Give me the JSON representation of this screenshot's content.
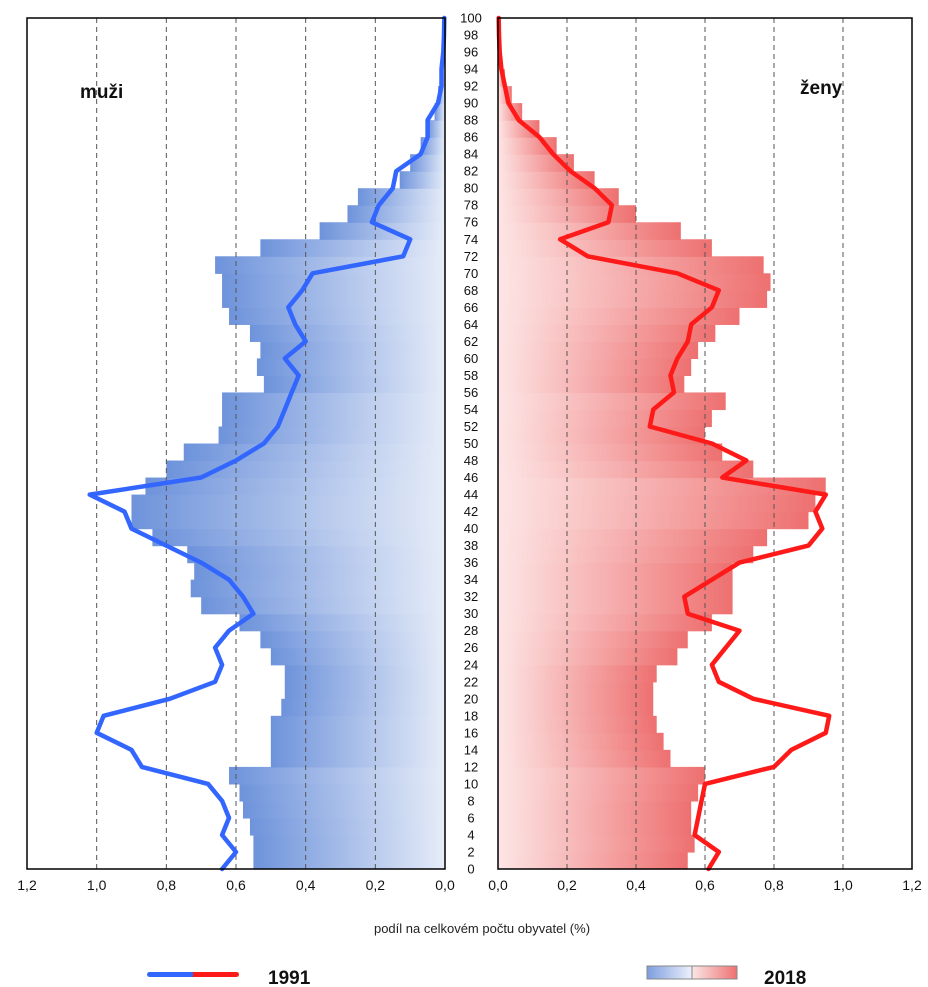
{
  "chart_data": {
    "type": "population-pyramid",
    "xlabel": "podíl na celkovém počtu obyvatel (%)",
    "left_title": "muži",
    "right_title": "ženy",
    "xlim": [
      0,
      1.2
    ],
    "x_ticks": [
      "1,2",
      "1,0",
      "0,8",
      "0,6",
      "0,4",
      "0,2",
      "0,0"
    ],
    "x_ticks_right": [
      "0,0",
      "0,2",
      "0,4",
      "0,6",
      "0,8",
      "1,0",
      "1,2"
    ],
    "age_range": [
      0,
      100
    ],
    "age_tick_step": 2,
    "legend": {
      "line_label": "1991",
      "bar_label": "2018"
    },
    "colors": {
      "male_line": "#3366ff",
      "female_line": "#ff1a1a",
      "male_bar": "#7c9ee0",
      "female_bar": "#f08080",
      "grid": "#555555"
    },
    "series": [
      {
        "name": "1991",
        "sex": "male",
        "kind": "line",
        "ages": [
          0,
          2,
          4,
          6,
          8,
          10,
          12,
          14,
          16,
          18,
          20,
          22,
          24,
          26,
          28,
          30,
          32,
          34,
          36,
          38,
          40,
          42,
          44,
          46,
          48,
          50,
          52,
          54,
          56,
          58,
          60,
          62,
          64,
          66,
          68,
          70,
          72,
          74,
          76,
          78,
          80,
          82,
          84,
          86,
          88,
          90,
          92,
          94,
          96,
          98,
          100
        ],
        "values": [
          0.64,
          0.6,
          0.64,
          0.62,
          0.64,
          0.68,
          0.87,
          0.9,
          1.0,
          0.98,
          0.79,
          0.66,
          0.64,
          0.66,
          0.62,
          0.55,
          0.58,
          0.62,
          0.7,
          0.8,
          0.9,
          0.92,
          1.02,
          0.7,
          0.6,
          0.52,
          0.48,
          0.46,
          0.44,
          0.42,
          0.46,
          0.4,
          0.43,
          0.45,
          0.41,
          0.38,
          0.12,
          0.1,
          0.21,
          0.19,
          0.15,
          0.14,
          0.07,
          0.05,
          0.05,
          0.02,
          0.01,
          0.01,
          0.005,
          0.003,
          0.002
        ]
      },
      {
        "name": "1991",
        "sex": "female",
        "kind": "line",
        "ages": [
          0,
          2,
          4,
          6,
          8,
          10,
          12,
          14,
          16,
          18,
          20,
          22,
          24,
          26,
          28,
          30,
          32,
          34,
          36,
          38,
          40,
          42,
          44,
          46,
          48,
          50,
          52,
          54,
          56,
          58,
          60,
          62,
          64,
          66,
          68,
          70,
          72,
          74,
          76,
          78,
          80,
          82,
          84,
          86,
          88,
          90,
          92,
          94,
          96,
          98,
          100
        ],
        "values": [
          0.61,
          0.64,
          0.57,
          0.58,
          0.59,
          0.6,
          0.8,
          0.85,
          0.95,
          0.96,
          0.74,
          0.64,
          0.62,
          0.66,
          0.7,
          0.55,
          0.54,
          0.62,
          0.7,
          0.9,
          0.94,
          0.92,
          0.95,
          0.65,
          0.72,
          0.62,
          0.44,
          0.45,
          0.51,
          0.5,
          0.52,
          0.55,
          0.56,
          0.62,
          0.64,
          0.52,
          0.26,
          0.18,
          0.32,
          0.33,
          0.28,
          0.21,
          0.16,
          0.12,
          0.06,
          0.03,
          0.02,
          0.01,
          0.005,
          0.003,
          0.002
        ]
      },
      {
        "name": "2018",
        "sex": "male",
        "kind": "bar",
        "ages": [
          0,
          2,
          4,
          6,
          8,
          10,
          12,
          14,
          16,
          18,
          20,
          22,
          24,
          26,
          28,
          30,
          32,
          34,
          36,
          38,
          40,
          42,
          44,
          46,
          48,
          50,
          52,
          54,
          56,
          58,
          60,
          62,
          64,
          66,
          68,
          70,
          72,
          74,
          76,
          78,
          80,
          82,
          84,
          86,
          88,
          90,
          92,
          94,
          96,
          98,
          100
        ],
        "values": [
          0.55,
          0.55,
          0.56,
          0.58,
          0.59,
          0.62,
          0.5,
          0.5,
          0.5,
          0.47,
          0.46,
          0.46,
          0.5,
          0.53,
          0.59,
          0.7,
          0.73,
          0.72,
          0.74,
          0.84,
          0.9,
          0.9,
          0.86,
          0.8,
          0.75,
          0.65,
          0.64,
          0.64,
          0.52,
          0.54,
          0.53,
          0.56,
          0.62,
          0.64,
          0.64,
          0.66,
          0.53,
          0.36,
          0.28,
          0.25,
          0.13,
          0.1,
          0.07,
          0.05,
          0.03,
          0.02,
          0.015,
          0.01,
          0.005,
          0.003,
          0.002
        ]
      },
      {
        "name": "2018",
        "sex": "female",
        "kind": "bar",
        "ages": [
          0,
          2,
          4,
          6,
          8,
          10,
          12,
          14,
          16,
          18,
          20,
          22,
          24,
          26,
          28,
          30,
          32,
          34,
          36,
          38,
          40,
          42,
          44,
          46,
          48,
          50,
          52,
          54,
          56,
          58,
          60,
          62,
          64,
          66,
          68,
          70,
          72,
          74,
          76,
          78,
          80,
          82,
          84,
          86,
          88,
          90,
          92,
          94,
          96,
          98,
          100
        ],
        "values": [
          0.55,
          0.57,
          0.56,
          0.56,
          0.58,
          0.6,
          0.5,
          0.48,
          0.46,
          0.45,
          0.45,
          0.46,
          0.52,
          0.55,
          0.62,
          0.68,
          0.68,
          0.68,
          0.74,
          0.78,
          0.9,
          0.92,
          0.95,
          0.74,
          0.65,
          0.6,
          0.62,
          0.66,
          0.54,
          0.56,
          0.58,
          0.63,
          0.7,
          0.78,
          0.79,
          0.77,
          0.62,
          0.53,
          0.4,
          0.35,
          0.28,
          0.22,
          0.17,
          0.12,
          0.07,
          0.04,
          0.02,
          0.01,
          0.006,
          0.004,
          0.002
        ]
      }
    ]
  }
}
